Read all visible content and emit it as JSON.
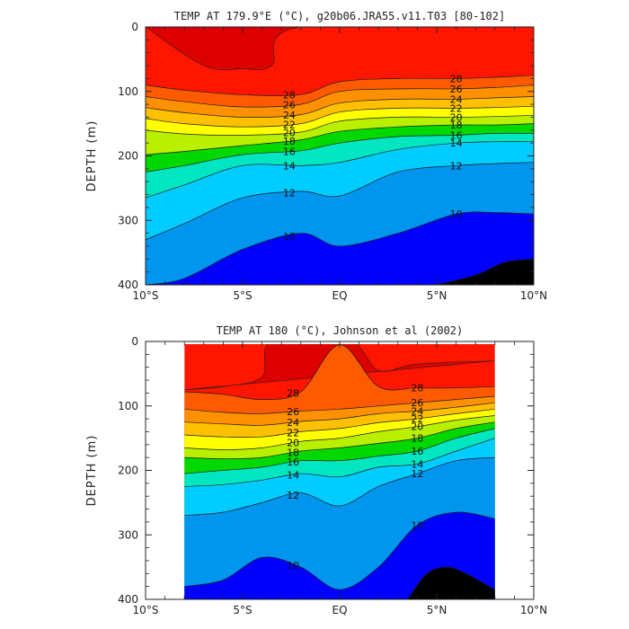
{
  "figure": {
    "panels": [
      {
        "title": "TEMP AT 179.9°E (°C), g20b06.JRA55.v11.T03 [80-102]",
        "ylabel": "DEPTH (m)",
        "xticks": [
          "10°S",
          "5°S",
          "EQ",
          "5°N",
          "10°N"
        ],
        "yticks": [
          "0",
          "100",
          "200",
          "300",
          "400"
        ]
      },
      {
        "title": "TEMP AT 180 (°C), Johnson et al (2002)",
        "ylabel": "DEPTH (m)",
        "xticks": [
          "10°S",
          "5°S",
          "EQ",
          "5°N",
          "10°N"
        ],
        "yticks": [
          "0",
          "100",
          "200",
          "300",
          "400"
        ]
      }
    ]
  },
  "chart_data": [
    {
      "type": "contour",
      "title": "TEMP AT 179.9°E (°C), g20b06.JRA55.v11.T03 [80-102]",
      "xlabel": "",
      "ylabel": "DEPTH (m)",
      "xlim": [
        -10,
        10
      ],
      "ylim": [
        0,
        400
      ],
      "y_inverted": true,
      "levels": [
        30,
        28,
        26,
        24,
        22,
        20,
        18,
        16,
        14,
        12,
        10,
        9
      ],
      "colors": [
        "#dd0000",
        "#ff1500",
        "#ff5a00",
        "#ff9000",
        "#ffc000",
        "#ffff00",
        "#b8f000",
        "#00d800",
        "#00e6c0",
        "#00ccff",
        "#0096f0",
        "#0000ff"
      ],
      "isotherms": [
        {
          "t": 28,
          "x": [
            -10,
            -8,
            -5,
            -2,
            0,
            3,
            6,
            8,
            10
          ],
          "y": [
            90,
            98,
            105,
            105,
            85,
            80,
            80,
            78,
            75
          ]
        },
        {
          "t": 26,
          "x": [
            -10,
            -8,
            -5,
            -2,
            0,
            3,
            6,
            8,
            10
          ],
          "y": [
            108,
            116,
            124,
            120,
            100,
            96,
            96,
            94,
            90
          ]
        },
        {
          "t": 24,
          "x": [
            -10,
            -8,
            -5,
            -2,
            0,
            3,
            6,
            8,
            10
          ],
          "y": [
            125,
            133,
            140,
            136,
            118,
            112,
            112,
            110,
            108
          ]
        },
        {
          "t": 22,
          "x": [
            -10,
            -8,
            -5,
            -2,
            0,
            3,
            6,
            8,
            10
          ],
          "y": [
            142,
            150,
            155,
            150,
            132,
            126,
            126,
            125,
            123
          ]
        },
        {
          "t": 20,
          "x": [
            -10,
            -8,
            -5,
            -2,
            0,
            3,
            6,
            8,
            10
          ],
          "y": [
            160,
            166,
            168,
            163,
            146,
            140,
            140,
            139,
            137
          ]
        },
        {
          "t": 18,
          "x": [
            -10,
            -8,
            -5,
            -2,
            0,
            3,
            6,
            8,
            10
          ],
          "y": [
            198,
            193,
            184,
            175,
            162,
            155,
            152,
            152,
            150
          ]
        },
        {
          "t": 16,
          "x": [
            -10,
            -8,
            -5,
            -2,
            0,
            3,
            6,
            8,
            10
          ],
          "y": [
            225,
            215,
            198,
            192,
            180,
            170,
            168,
            165,
            165
          ]
        },
        {
          "t": 14,
          "x": [
            -10,
            -8,
            -5,
            -2,
            0,
            3,
            6,
            8,
            10
          ],
          "y": [
            265,
            245,
            215,
            215,
            210,
            190,
            180,
            178,
            178
          ]
        },
        {
          "t": 12,
          "x": [
            -10,
            -8,
            -5,
            -2,
            0,
            3,
            6,
            8,
            10
          ],
          "y": [
            330,
            305,
            265,
            255,
            262,
            225,
            215,
            212,
            210
          ]
        },
        {
          "t": 10,
          "x": [
            -10,
            -8,
            -5,
            -2,
            0,
            3,
            6,
            8,
            10
          ],
          "y": [
            400,
            390,
            345,
            320,
            340,
            320,
            290,
            288,
            290
          ]
        },
        {
          "t": 9,
          "x": [
            5,
            7,
            8.5,
            10
          ],
          "y": [
            400,
            385,
            365,
            360
          ]
        }
      ],
      "warm_core_30": {
        "x": [
          -10,
          -7,
          -5,
          -3.5,
          -2,
          10
        ],
        "y": [
          0,
          60,
          65,
          60,
          0,
          0
        ]
      }
    },
    {
      "type": "contour",
      "title": "TEMP AT 180 (°C), Johnson et al (2002)",
      "xlabel": "",
      "ylabel": "DEPTH (m)",
      "xlim": [
        -10,
        10
      ],
      "ylim": [
        0,
        400
      ],
      "y_inverted": true,
      "data_xrange": [
        -8,
        8
      ],
      "levels": [
        30,
        28,
        26,
        24,
        22,
        20,
        18,
        16,
        14,
        12,
        10,
        9
      ],
      "colors": [
        "#dd0000",
        "#ff1500",
        "#ff5a00",
        "#ff9000",
        "#ffc000",
        "#ffff00",
        "#b8f000",
        "#00d800",
        "#00e6c0",
        "#00ccff",
        "#0096f0",
        "#0000ff"
      ],
      "isotherms": [
        {
          "t": 28,
          "x": [
            -8,
            -6,
            -4,
            -2,
            0,
            2,
            4,
            6,
            8
          ],
          "y": [
            78,
            82,
            90,
            78,
            5,
            70,
            72,
            72,
            70
          ]
        },
        {
          "t": 26,
          "x": [
            -8,
            -6,
            -4,
            -2,
            0,
            2,
            4,
            6,
            8
          ],
          "y": [
            105,
            110,
            112,
            108,
            105,
            100,
            95,
            90,
            85
          ]
        },
        {
          "t": 24,
          "x": [
            -8,
            -6,
            -4,
            -2,
            0,
            2,
            4,
            6,
            8
          ],
          "y": [
            125,
            128,
            130,
            124,
            120,
            112,
            108,
            102,
            95
          ]
        },
        {
          "t": 22,
          "x": [
            -8,
            -6,
            -4,
            -2,
            0,
            2,
            4,
            6,
            8
          ],
          "y": [
            145,
            148,
            148,
            140,
            135,
            126,
            120,
            112,
            105
          ]
        },
        {
          "t": 20,
          "x": [
            -8,
            -6,
            -4,
            -2,
            0,
            2,
            4,
            6,
            8
          ],
          "y": [
            165,
            168,
            165,
            155,
            150,
            140,
            132,
            122,
            115
          ]
        },
        {
          "t": 18,
          "x": [
            -8,
            -6,
            -4,
            -2,
            0,
            2,
            4,
            6,
            8
          ],
          "y": [
            180,
            182,
            180,
            170,
            165,
            158,
            150,
            135,
            125
          ]
        },
        {
          "t": 16,
          "x": [
            -8,
            -6,
            -4,
            -2,
            0,
            2,
            4,
            6,
            8
          ],
          "y": [
            205,
            200,
            195,
            185,
            185,
            178,
            170,
            150,
            135
          ]
        },
        {
          "t": 14,
          "x": [
            -8,
            -6,
            -4,
            -2,
            0,
            2,
            4,
            6,
            8
          ],
          "y": [
            225,
            222,
            215,
            205,
            210,
            195,
            190,
            170,
            150
          ]
        },
        {
          "t": 12,
          "x": [
            -8,
            -6,
            -4,
            -2,
            0,
            2,
            4,
            6,
            8
          ],
          "y": [
            270,
            265,
            250,
            235,
            255,
            225,
            205,
            185,
            180
          ]
        },
        {
          "t": 10,
          "x": [
            -8,
            -6,
            -4,
            -2,
            0,
            2,
            4,
            6,
            8
          ],
          "y": [
            380,
            370,
            335,
            350,
            385,
            350,
            285,
            265,
            275
          ]
        },
        {
          "t": 9,
          "x": [
            3.5,
            4.5,
            5.5,
            6.5,
            8
          ],
          "y": [
            400,
            360,
            350,
            360,
            385
          ]
        }
      ],
      "warm_core_30": {
        "x": [
          -8,
          -6,
          -4,
          -3.5,
          0.5,
          2,
          4,
          8
        ],
        "y": [
          75,
          70,
          55,
          0,
          0,
          45,
          35,
          30
        ]
      }
    }
  ]
}
